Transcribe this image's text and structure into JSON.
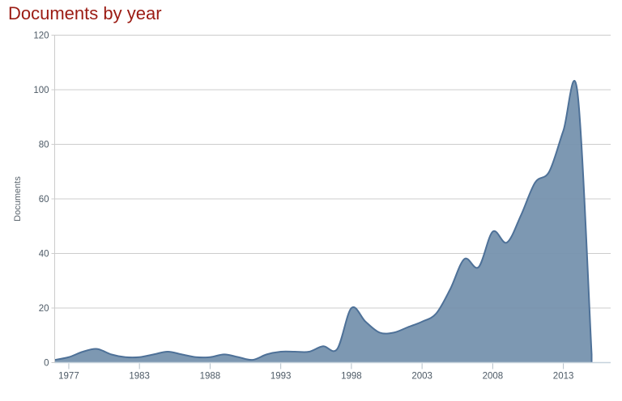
{
  "chart_data": {
    "type": "area",
    "title": "Documents by year",
    "ylabel": "Documents",
    "xlabel": "",
    "x": [
      1976,
      1977,
      1978,
      1979,
      1980,
      1981,
      1983,
      1984,
      1985,
      1986,
      1987,
      1988,
      1989,
      1990,
      1991,
      1992,
      1993,
      1994,
      1995,
      1996,
      1997,
      1998,
      1999,
      2000,
      2001,
      2002,
      2003,
      2004,
      2005,
      2006,
      2007,
      2008,
      2009,
      2010,
      2011,
      2012,
      2013,
      2014,
      2015
    ],
    "values": [
      1,
      2,
      4,
      5,
      3,
      2,
      2,
      3,
      4,
      3,
      2,
      2,
      3,
      2,
      1,
      3,
      4,
      4,
      4,
      6,
      5,
      20,
      15,
      11,
      11,
      13,
      15,
      18,
      27,
      38,
      35,
      48,
      44,
      54,
      66,
      70,
      85,
      99,
      3
    ],
    "xticks": [
      1977,
      1983,
      1988,
      1993,
      1998,
      2003,
      2008,
      2013
    ],
    "yticks": [
      0,
      20,
      40,
      60,
      80,
      100,
      120
    ],
    "ylim": [
      0,
      120
    ],
    "grid": true,
    "smooth": true,
    "legend": "none",
    "colors": {
      "title": "#9b1b13",
      "area_fill": "#7390ac",
      "area_stroke": "#4e7198",
      "gridline": "#cccccc",
      "plot_border": "#cccccc",
      "x_axis_line": "#c6d2dc",
      "tick_mark": "#b3bfc9",
      "tick_text": "#4d5a66",
      "axis_title_text": "#5a646d",
      "background": "#ffffff"
    }
  }
}
